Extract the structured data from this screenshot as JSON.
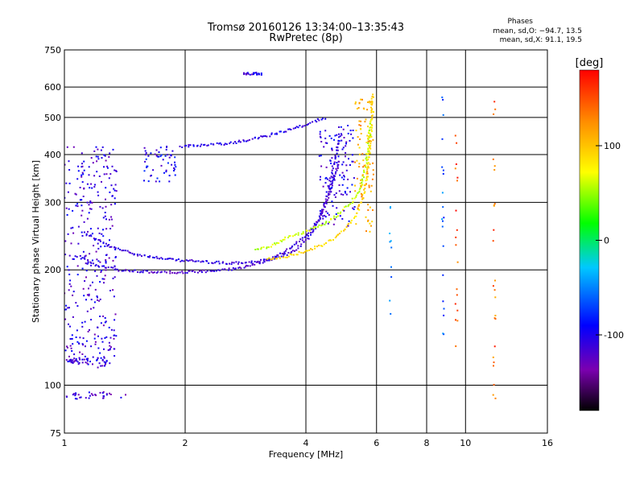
{
  "header": {
    "title": "Tromsø 20160126 13:34:00–13:35:43",
    "subtitle": "RwPretec (8p)"
  },
  "phases_box": {
    "heading": "Phases",
    "line_o": "mean, sd,O: −94.7, 13.5",
    "line_x": "mean, sd,X:  91.1, 19.5"
  },
  "chart_data": {
    "type": "scatter",
    "title": "Tromsø 20160126 13:34:00–13:35:43",
    "subtitle": "RwPretec (8p)",
    "xlabel": "Frequency [MHz]",
    "ylabel": "Stationary phase Virtual Height [km]",
    "x_scale": "log",
    "y_scale": "log",
    "xlim": [
      1,
      16
    ],
    "ylim": [
      75,
      750
    ],
    "x_ticks": [
      1,
      2,
      4,
      6,
      8,
      10,
      16
    ],
    "x_tick_labels": [
      "1",
      "2",
      "4",
      "6",
      "8",
      "10",
      "16"
    ],
    "x_gridlines": [
      2,
      4,
      6,
      8,
      10
    ],
    "y_ticks": [
      75,
      100,
      200,
      300,
      400,
      500,
      600,
      750
    ],
    "y_tick_labels": [
      "75",
      "100",
      "200",
      "300",
      "400",
      "500",
      "600",
      "750"
    ],
    "y_gridlines": [
      100,
      200,
      300,
      400,
      500,
      600
    ],
    "grid": true,
    "colorbar": {
      "label": "[deg]",
      "range": [
        -180,
        180
      ],
      "ticks": [
        100,
        0,
        -100
      ],
      "tick_labels": [
        "100",
        "0",
        "-100"
      ],
      "colors": [
        "#000000",
        "#7b00b0",
        "#0000ff",
        "#00c8ff",
        "#00ff00",
        "#ffff00",
        "#ff8c00",
        "#ff0000"
      ]
    },
    "series": [
      {
        "kind": "curve",
        "phase": -110,
        "points": [
          [
            1.12,
            250
          ],
          [
            1.3,
            230
          ],
          [
            1.5,
            220
          ],
          [
            1.8,
            213
          ],
          [
            2.2,
            210
          ],
          [
            2.6,
            208
          ],
          [
            3.0,
            210
          ],
          [
            3.3,
            213
          ],
          [
            3.7,
            222
          ],
          [
            4.0,
            238
          ],
          [
            4.2,
            255
          ],
          [
            4.4,
            285
          ],
          [
            4.55,
            320
          ],
          [
            4.7,
            380
          ],
          [
            4.8,
            420
          ],
          [
            4.88,
            460
          ]
        ]
      },
      {
        "kind": "curve",
        "phase": -115,
        "points": [
          [
            1.1,
            218
          ],
          [
            1.2,
            205
          ],
          [
            1.4,
            199
          ],
          [
            1.7,
            197
          ],
          [
            2.0,
            197
          ],
          [
            2.4,
            199
          ],
          [
            2.8,
            203
          ],
          [
            3.2,
            212
          ],
          [
            3.6,
            225
          ],
          [
            4.0,
            245
          ],
          [
            4.3,
            270
          ],
          [
            4.5,
            300
          ],
          [
            4.7,
            345
          ],
          [
            4.85,
            390
          ]
        ]
      },
      {
        "kind": "curve",
        "phase": -105,
        "points": [
          [
            1.95,
            420
          ],
          [
            2.2,
            422
          ],
          [
            2.6,
            428
          ],
          [
            3.0,
            440
          ],
          [
            3.4,
            455
          ],
          [
            3.8,
            470
          ],
          [
            4.2,
            488
          ],
          [
            4.5,
            500
          ]
        ]
      },
      {
        "kind": "curve",
        "phase": 90,
        "points": [
          [
            3.2,
            213
          ],
          [
            3.6,
            217
          ],
          [
            4.0,
            224
          ],
          [
            4.4,
            232
          ],
          [
            4.8,
            245
          ],
          [
            5.1,
            260
          ],
          [
            5.35,
            280
          ],
          [
            5.55,
            310
          ],
          [
            5.7,
            360
          ],
          [
            5.78,
            420
          ],
          [
            5.82,
            480
          ],
          [
            5.85,
            540
          ],
          [
            5.88,
            580
          ]
        ]
      },
      {
        "kind": "curve",
        "phase": 60,
        "points": [
          [
            3.0,
            225
          ],
          [
            3.3,
            232
          ],
          [
            3.6,
            243
          ],
          [
            4.0,
            252
          ],
          [
            4.4,
            262
          ],
          [
            4.8,
            278
          ],
          [
            5.2,
            300
          ],
          [
            5.5,
            330
          ],
          [
            5.65,
            380
          ],
          [
            5.75,
            440
          ],
          [
            5.8,
            500
          ]
        ]
      },
      {
        "kind": "cluster",
        "phase": -110,
        "x_range": [
          1.0,
          1.35
        ],
        "y_range": [
          110,
          420
        ]
      },
      {
        "kind": "cluster",
        "phase": -115,
        "x_range": [
          1.0,
          1.45
        ],
        "y_range": [
          92,
          96
        ]
      },
      {
        "kind": "cluster",
        "phase": -110,
        "x_range": [
          1.02,
          1.3
        ],
        "y_range": [
          114,
          118
        ]
      },
      {
        "kind": "cluster",
        "phase": -100,
        "x_range": [
          1.55,
          1.9
        ],
        "y_range": [
          340,
          420
        ]
      },
      {
        "kind": "cluster",
        "phase": -105,
        "x_range": [
          4.3,
          5.3
        ],
        "y_range": [
          260,
          480
        ]
      },
      {
        "kind": "cluster",
        "phase": 110,
        "x_range": [
          5.3,
          5.9
        ],
        "y_range": [
          250,
          560
        ]
      },
      {
        "kind": "cluster",
        "phase": -110,
        "x_range": [
          2.8,
          3.1
        ],
        "y_range": [
          645,
          655
        ]
      },
      {
        "kind": "column",
        "phase": 140,
        "x": 11.8,
        "y_range": [
          90,
          600
        ]
      },
      {
        "kind": "column",
        "phase": -60,
        "x": 8.8,
        "y_range": [
          125,
          580
        ]
      },
      {
        "kind": "column",
        "phase": 150,
        "x": 9.5,
        "y_range": [
          115,
          450
        ]
      },
      {
        "kind": "column",
        "phase": -40,
        "x": 6.5,
        "y_range": [
          145,
          310
        ]
      }
    ]
  }
}
